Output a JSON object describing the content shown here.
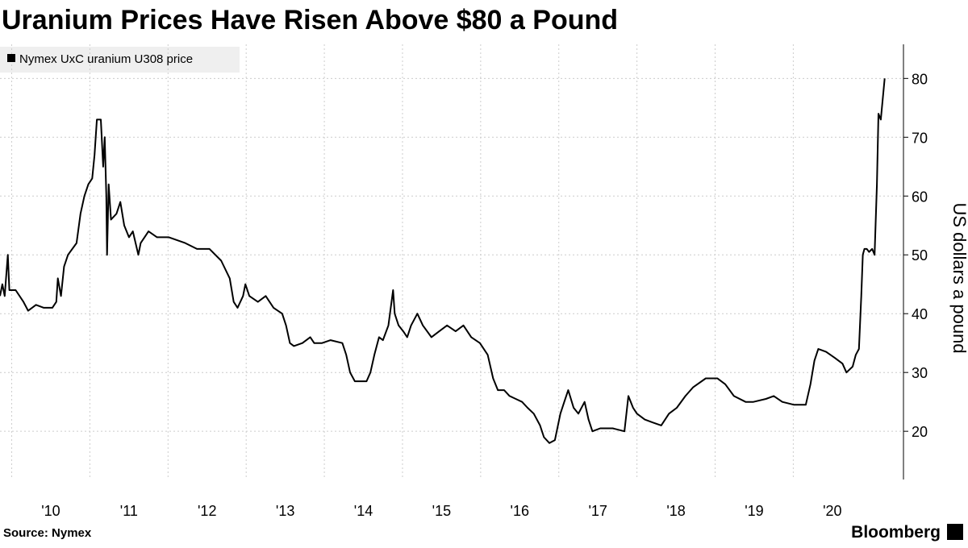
{
  "chart_data": {
    "type": "line",
    "title": "Uranium Prices Have Risen Above $80 a Pound",
    "y_label": "US dollars a pound",
    "source": "Source: Nymex",
    "credit": "Bloomberg",
    "grid": true,
    "legend": "top-left",
    "xlim": [
      2009.85,
      2021.41
    ],
    "xticks": [
      {
        "value": 2010,
        "label": "'10"
      },
      {
        "value": 2011,
        "label": "'11"
      },
      {
        "value": 2012,
        "label": "'12"
      },
      {
        "value": 2013,
        "label": "'13"
      },
      {
        "value": 2014,
        "label": "'14"
      },
      {
        "value": 2015,
        "label": "'15"
      },
      {
        "value": 2016,
        "label": "'16"
      },
      {
        "value": 2017,
        "label": "'17"
      },
      {
        "value": 2018,
        "label": "'18"
      },
      {
        "value": 2019,
        "label": "'19"
      },
      {
        "value": 2020,
        "label": "'20"
      }
    ],
    "ylim": [
      11.8,
      85.8
    ],
    "yticks": [
      20,
      30,
      40,
      50,
      60,
      70,
      80
    ],
    "x": [
      2009.85,
      2009.88,
      2009.91,
      2009.95,
      2009.97,
      2010.05,
      2010.15,
      2010.21,
      2010.31,
      2010.41,
      2010.52,
      2010.57,
      2010.59,
      2010.63,
      2010.67,
      2010.72,
      2010.83,
      2010.88,
      2010.93,
      2010.98,
      2011.03,
      2011.06,
      2011.09,
      2011.14,
      2011.17,
      2011.19,
      2011.21,
      2011.22,
      2011.24,
      2011.27,
      2011.34,
      2011.39,
      2011.44,
      2011.5,
      2011.55,
      2011.62,
      2011.65,
      2011.7,
      2011.75,
      2011.86,
      2012.01,
      2012.22,
      2012.37,
      2012.53,
      2012.68,
      2012.79,
      2012.84,
      2012.89,
      2012.96,
      2012.99,
      2013.04,
      2013.15,
      2013.25,
      2013.35,
      2013.46,
      2013.51,
      2013.56,
      2013.61,
      2013.72,
      2013.82,
      2013.87,
      2013.97,
      2014.08,
      2014.23,
      2014.28,
      2014.33,
      2014.39,
      2014.54,
      2014.59,
      2014.64,
      2014.7,
      2014.75,
      2014.82,
      2014.88,
      2014.9,
      2014.95,
      2015.01,
      2015.06,
      2015.11,
      2015.19,
      2015.26,
      2015.37,
      2015.47,
      2015.57,
      2015.68,
      2015.78,
      2015.88,
      2015.99,
      2016.09,
      2016.16,
      2016.22,
      2016.3,
      2016.37,
      2016.45,
      2016.53,
      2016.6,
      2016.68,
      2016.76,
      2016.81,
      2016.88,
      2016.95,
      2017.02,
      2017.07,
      2017.12,
      2017.19,
      2017.25,
      2017.33,
      2017.38,
      2017.43,
      2017.53,
      2017.69,
      2017.84,
      2017.89,
      2017.95,
      2018.0,
      2018.1,
      2018.2,
      2018.31,
      2018.41,
      2018.51,
      2018.62,
      2018.72,
      2018.88,
      2019.03,
      2019.13,
      2019.24,
      2019.39,
      2019.49,
      2019.65,
      2019.75,
      2019.86,
      2020.01,
      2020.16,
      2020.22,
      2020.27,
      2020.32,
      2020.42,
      2020.53,
      2020.63,
      2020.68,
      2020.76,
      2020.8,
      2020.84,
      2020.87,
      2020.89,
      2020.91,
      2020.94,
      2020.97,
      2021.01,
      2021.04,
      2021.07,
      2021.09,
      2021.12,
      2021.17
    ],
    "series": [
      {
        "name": "Nymex UxC uranium U308 price",
        "color": "#000000",
        "values": [
          43,
          45,
          43,
          50,
          44,
          44,
          42,
          40.5,
          41.5,
          41,
          41,
          42,
          46,
          43,
          48,
          50,
          52,
          57,
          60,
          62,
          63,
          67,
          73,
          73,
          65,
          70,
          60,
          50,
          62,
          56,
          57,
          59,
          55,
          53,
          54,
          50,
          52,
          53,
          54,
          53,
          53,
          52,
          51,
          51,
          49,
          46,
          42,
          41,
          43,
          45,
          43,
          42,
          43,
          41,
          40,
          38,
          35,
          34.5,
          35,
          36,
          35,
          35,
          35.5,
          35,
          33,
          30,
          28.5,
          28.5,
          30,
          33,
          36,
          35.5,
          38,
          44,
          40,
          38,
          37,
          36,
          38,
          40,
          38,
          36,
          37,
          38,
          37,
          38,
          36,
          35,
          33,
          29,
          27,
          27,
          26,
          25.5,
          25,
          24,
          23,
          21,
          19,
          18,
          18.5,
          23,
          25,
          27,
          24,
          23,
          25,
          22,
          20,
          20.5,
          20.5,
          20,
          26,
          24,
          23,
          22,
          21.5,
          21,
          23,
          24,
          26,
          27.5,
          29,
          29,
          28,
          26,
          25,
          25,
          25.5,
          26,
          25,
          24.5,
          24.5,
          28,
          32,
          34,
          33.5,
          32.5,
          31.5,
          30,
          31,
          33,
          34,
          43,
          50,
          51,
          51,
          50.5,
          51,
          50,
          62,
          74,
          73,
          80
        ]
      }
    ]
  }
}
